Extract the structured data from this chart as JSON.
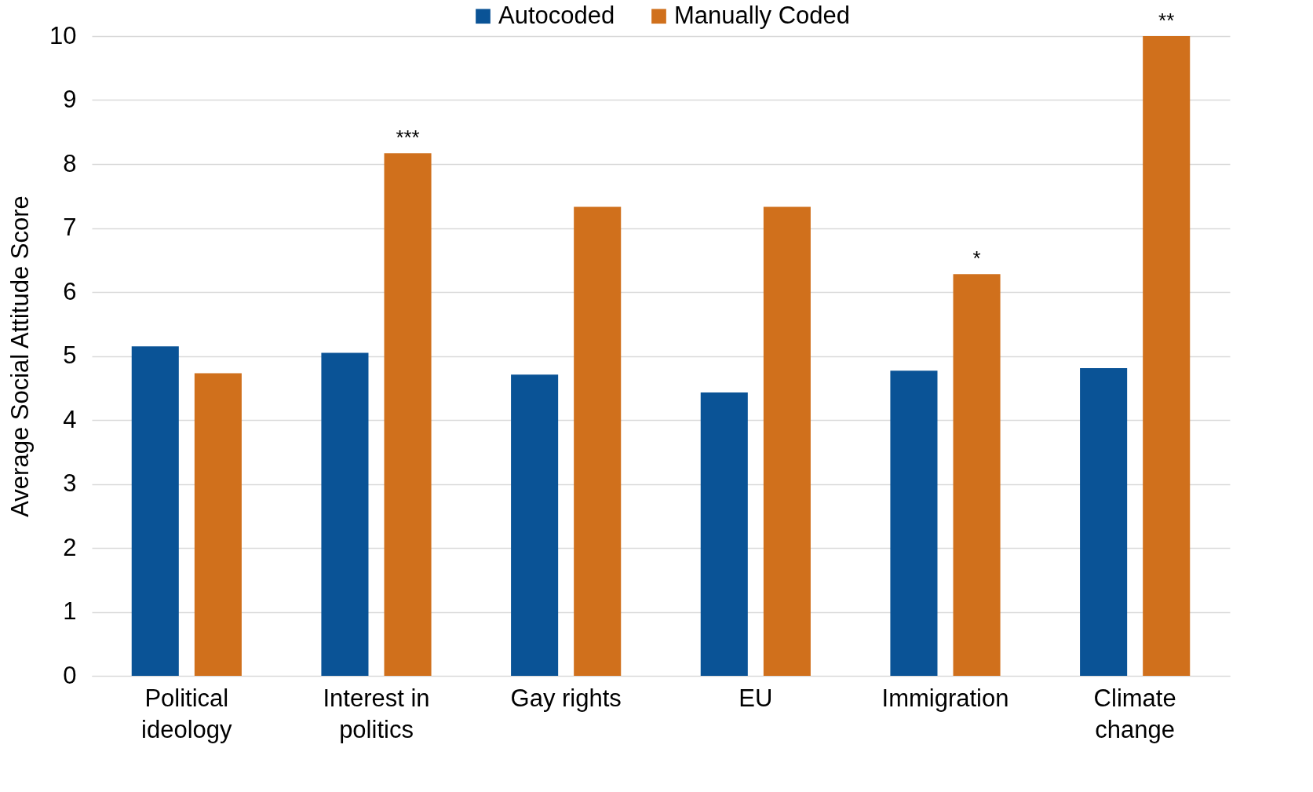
{
  "chart_data": {
    "type": "bar",
    "ylabel": "Average Social Attitude Score",
    "categories": [
      "Political ideology",
      "Interest in politics",
      "Gay rights",
      "EU",
      "Immigration",
      "Climate change"
    ],
    "series": [
      {
        "name": "Autocoded",
        "color": "#0a5396",
        "values": [
          5.15,
          5.05,
          4.71,
          4.43,
          4.77,
          4.81
        ]
      },
      {
        "name": "Manually Coded",
        "color": "#d0701c",
        "values": [
          4.73,
          8.17,
          7.33,
          7.33,
          6.28,
          10.0
        ],
        "value_labels": [
          null,
          "***",
          null,
          null,
          "*",
          "**"
        ]
      }
    ],
    "ylim": [
      0,
      10
    ],
    "yticks": [
      0,
      1,
      2,
      3,
      4,
      5,
      6,
      7,
      8,
      9,
      10
    ],
    "grid": "y",
    "legend": "top"
  }
}
